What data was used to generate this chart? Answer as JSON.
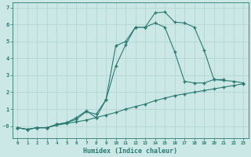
{
  "background_color": "#cce8e6",
  "grid_color": "#b8d8d6",
  "line_color": "#2a7a72",
  "xlabel": "Humidex (Indice chaleur)",
  "xlim": [
    -0.5,
    23.5
  ],
  "ylim": [
    -0.7,
    7.3
  ],
  "yticks": [
    0,
    1,
    2,
    3,
    4,
    5,
    6,
    7
  ],
  "ytick_labels": [
    "-0",
    "1",
    "2",
    "3",
    "4",
    "5",
    "6",
    "7"
  ],
  "xticks": [
    0,
    1,
    2,
    3,
    4,
    5,
    6,
    7,
    8,
    9,
    10,
    11,
    12,
    13,
    14,
    15,
    16,
    17,
    18,
    19,
    20,
    21,
    22,
    23
  ],
  "line1_x": [
    0,
    1,
    2,
    3,
    4,
    5,
    6,
    7,
    8,
    9,
    10,
    11,
    12,
    13,
    14,
    15,
    16,
    17,
    18,
    19,
    20,
    21,
    22,
    23
  ],
  "line1_y": [
    -0.1,
    -0.2,
    -0.1,
    -0.1,
    0.05,
    0.15,
    0.25,
    0.35,
    0.5,
    0.65,
    0.8,
    1.0,
    1.15,
    1.3,
    1.5,
    1.65,
    1.8,
    1.9,
    2.0,
    2.1,
    2.2,
    2.3,
    2.4,
    2.5
  ],
  "line2_x": [
    0,
    1,
    2,
    3,
    4,
    5,
    6,
    7,
    8,
    9,
    10,
    11,
    12,
    13,
    14,
    15,
    16,
    17,
    18,
    19,
    20,
    21,
    22,
    23
  ],
  "line2_y": [
    -0.1,
    -0.2,
    -0.1,
    -0.1,
    0.1,
    0.2,
    0.4,
    0.85,
    0.7,
    1.55,
    4.75,
    5.0,
    5.85,
    5.85,
    6.7,
    6.75,
    6.15,
    6.1,
    5.85,
    4.5,
    2.75,
    2.7,
    2.65,
    2.55
  ],
  "line3_x": [
    0,
    1,
    2,
    3,
    4,
    5,
    6,
    7,
    8,
    9,
    10,
    11,
    12,
    13,
    14,
    15,
    16,
    17,
    18,
    19,
    20,
    21
  ],
  "line3_y": [
    -0.1,
    -0.2,
    -0.1,
    -0.1,
    0.1,
    0.2,
    0.5,
    0.9,
    0.5,
    1.55,
    3.55,
    4.8,
    5.85,
    5.85,
    6.1,
    5.85,
    4.4,
    2.65,
    2.55,
    2.55,
    2.75,
    2.75
  ]
}
